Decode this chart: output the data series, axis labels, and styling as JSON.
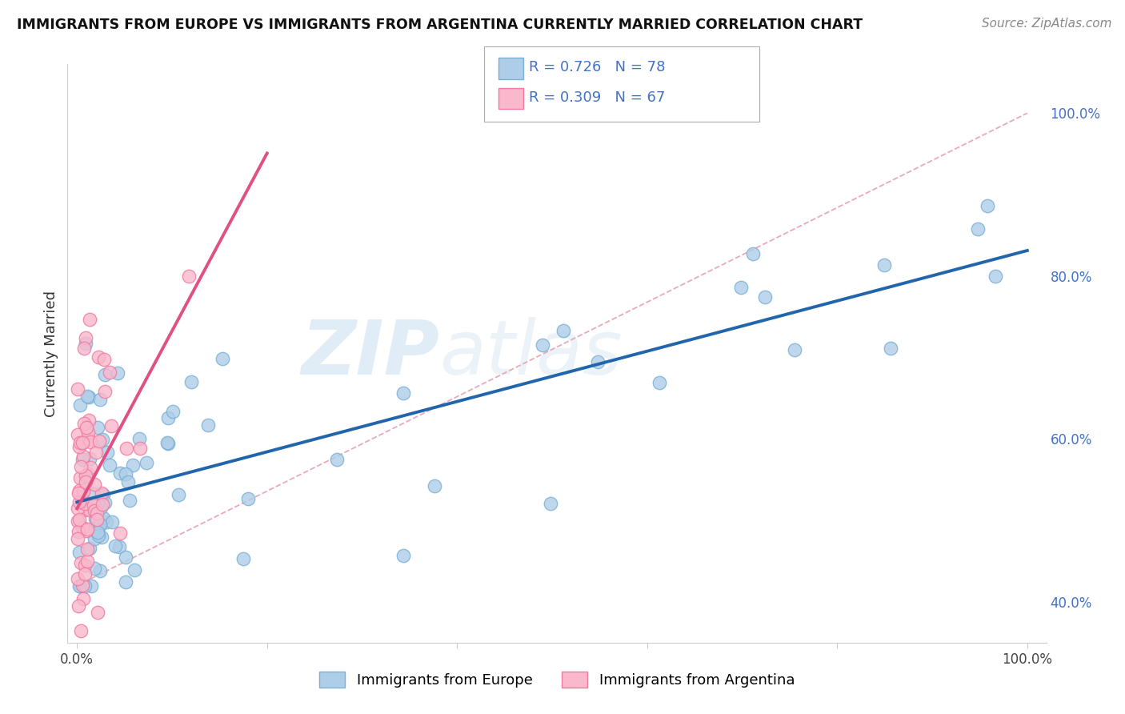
{
  "title": "IMMIGRANTS FROM EUROPE VS IMMIGRANTS FROM ARGENTINA CURRENTLY MARRIED CORRELATION CHART",
  "source": "Source: ZipAtlas.com",
  "ylabel": "Currently Married",
  "legend_europe": "Immigrants from Europe",
  "legend_argentina": "Immigrants from Argentina",
  "R_europe": 0.726,
  "N_europe": 78,
  "R_argentina": 0.309,
  "N_argentina": 67,
  "blue_scatter_face": "#aecde8",
  "blue_scatter_edge": "#7ab0d4",
  "pink_scatter_face": "#f9b8cb",
  "pink_scatter_edge": "#f07aa0",
  "blue_line_color": "#2166ac",
  "pink_line_color": "#e05080",
  "dashed_line_color": "#e8a0b0",
  "right_tick_color": "#4472c4",
  "watermark_zip": "ZIP",
  "watermark_atlas": "atlas",
  "grid_color": "#dddddd",
  "ylim_low": 0.35,
  "ylim_high": 1.06,
  "xlim_low": -0.01,
  "xlim_high": 1.02
}
